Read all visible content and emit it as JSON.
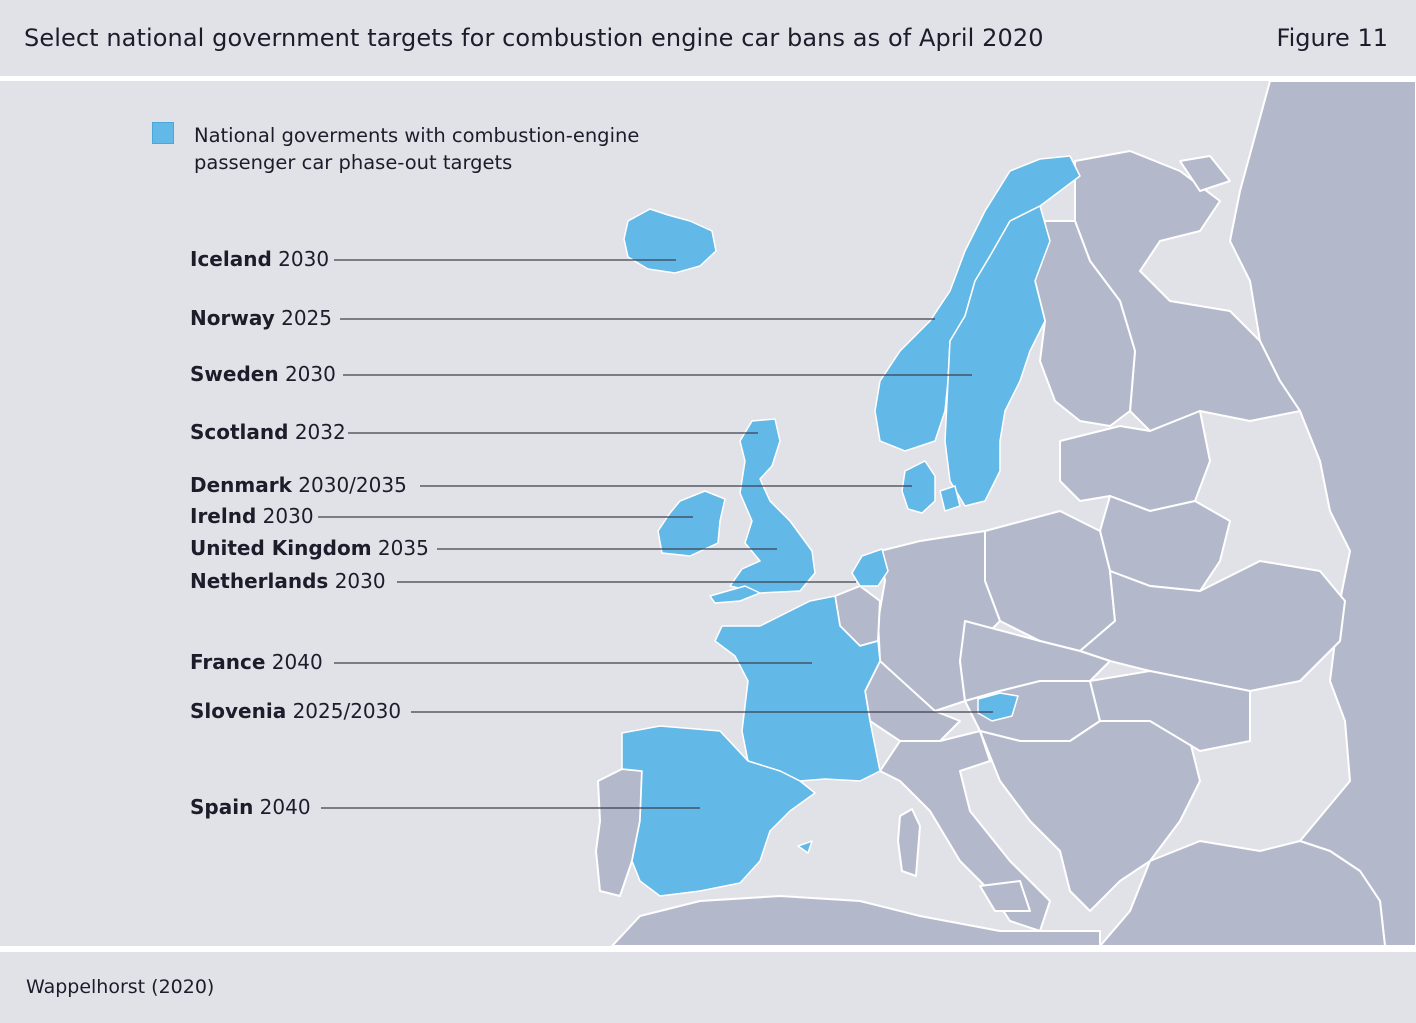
{
  "header": {
    "title": "Select national government targets for combustion engine car bans as of April 2020",
    "figure": "Figure 11"
  },
  "legend": {
    "label_line1": "National goverments with combustion-engine",
    "label_line2": "passenger car phase-out targets",
    "color": "#62b8e6"
  },
  "colors": {
    "background": "#e1e2e7",
    "land": "#b4b8cb",
    "highlight": "#62b8e6",
    "border": "#ffffff",
    "leader": "#3c3f4c"
  },
  "targets": [
    {
      "country": "Iceland",
      "year": "2030"
    },
    {
      "country": "Norway",
      "year": "2025"
    },
    {
      "country": "Sweden",
      "year": "2030"
    },
    {
      "country": "Scotland",
      "year": "2032"
    },
    {
      "country": "Denmark",
      "year": "2030/2035"
    },
    {
      "country": "Irelnd",
      "year": "2030"
    },
    {
      "country": "United Kingdom",
      "year": "2035"
    },
    {
      "country": "Netherlands",
      "year": "2030"
    },
    {
      "country": "France",
      "year": "2040"
    },
    {
      "country": "Slovenia",
      "year": "2025/2030"
    },
    {
      "country": "Spain",
      "year": "2040"
    }
  ],
  "footer": {
    "source": "Wappelhorst (2020)"
  }
}
